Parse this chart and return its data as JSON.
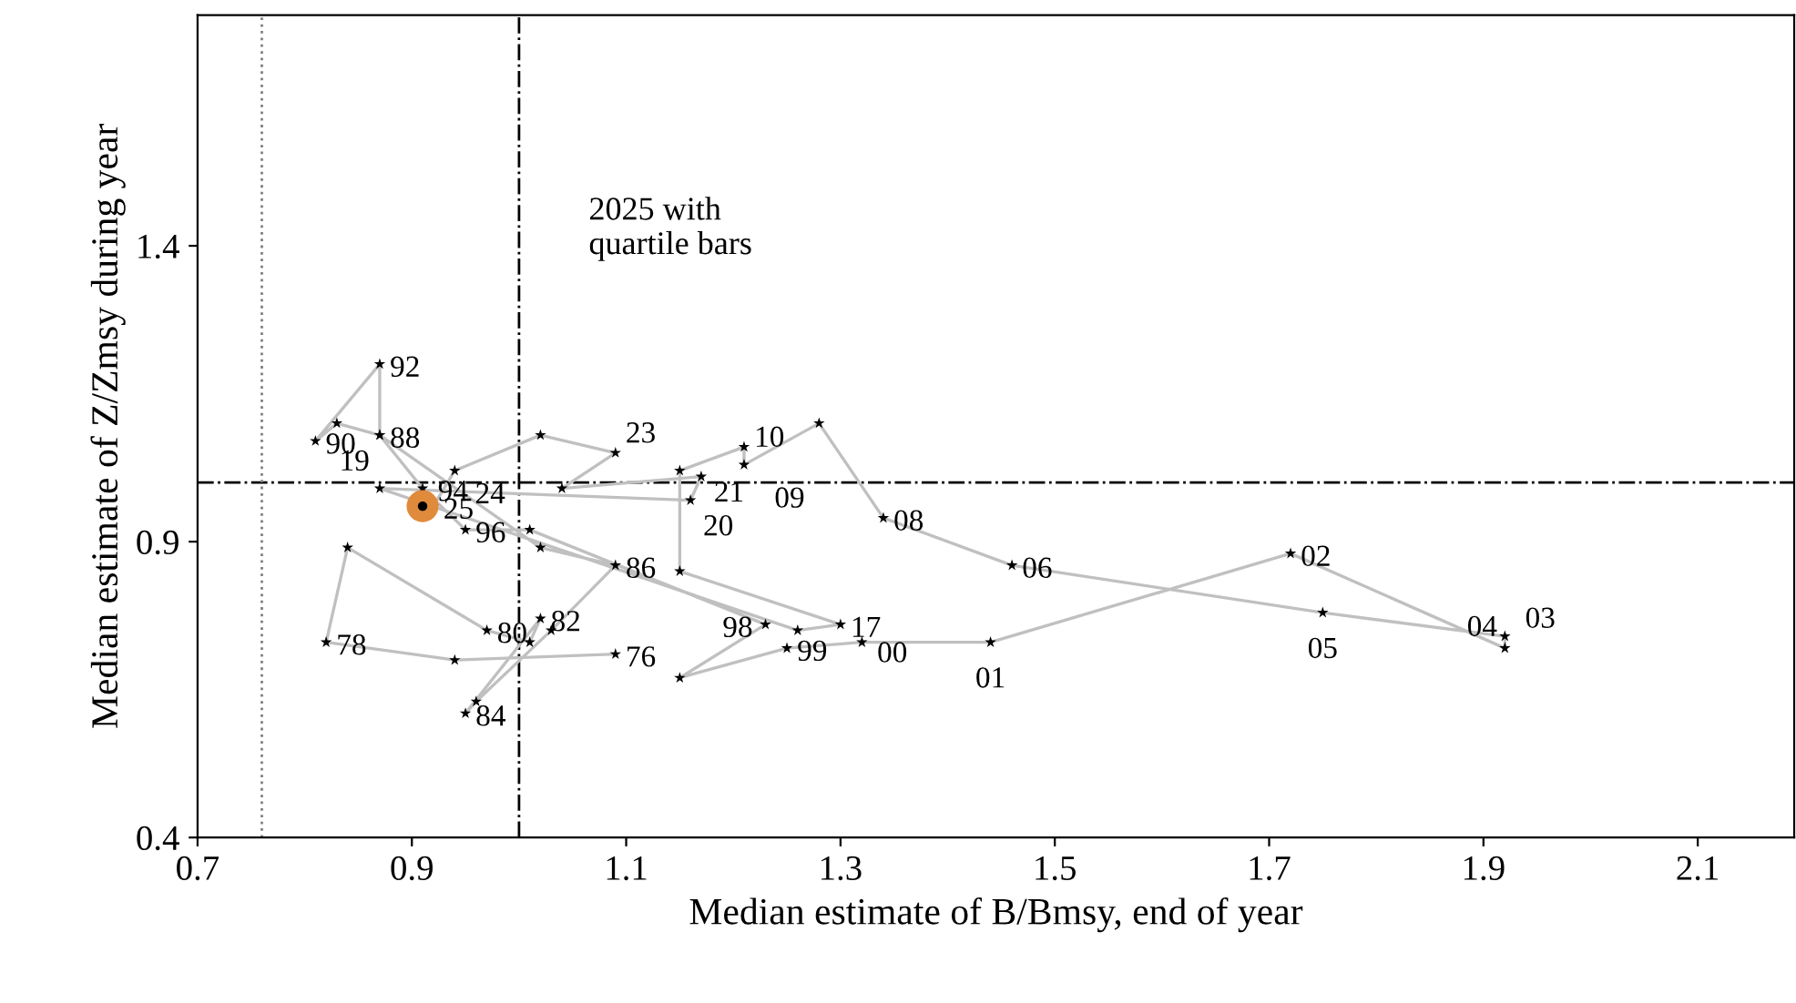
{
  "chart_data": {
    "type": "line",
    "xlabel": "Median estimate of B/Bmsy, end of year",
    "ylabel": "Median estimate of Z/Zmsy during year",
    "xlim": [
      0.7,
      2.19
    ],
    "ylim": [
      0.4,
      1.79
    ],
    "xticks": [
      0.7,
      0.9,
      1.1,
      1.3,
      1.5,
      1.7,
      1.9,
      2.1
    ],
    "yticks": [
      0.4,
      0.9,
      1.4
    ],
    "grid": false,
    "legend": false,
    "line_style": "solid",
    "series": [
      {
        "marker": "star",
        "color": "#c0c0c0",
        "x": [
          1.09,
          0.94,
          0.82,
          0.84,
          0.97,
          1.01,
          1.02,
          0.95,
          0.96,
          1.03,
          1.09,
          1.02,
          0.87,
          0.83,
          0.81,
          0.87,
          0.87,
          0.91,
          0.95,
          1.01,
          1.23,
          1.15,
          1.25,
          1.32,
          1.44,
          1.72,
          1.92,
          1.92,
          1.75,
          1.46,
          1.34,
          1.28,
          1.21,
          1.21,
          1.15,
          1.15,
          1.3,
          1.26,
          0.87,
          1.16,
          1.17,
          1.04,
          1.09,
          1.02,
          0.94,
          0.92
        ],
        "values": [
          0.71,
          0.7,
          0.73,
          0.89,
          0.75,
          0.73,
          0.77,
          0.61,
          0.63,
          0.75,
          0.86,
          0.89,
          1.08,
          1.1,
          1.07,
          1.2,
          1.08,
          0.99,
          0.92,
          0.92,
          0.76,
          0.67,
          0.72,
          0.73,
          0.73,
          0.88,
          0.72,
          0.74,
          0.78,
          0.86,
          0.94,
          1.1,
          1.03,
          1.06,
          1.02,
          0.85,
          0.76,
          0.75,
          0.99,
          0.97,
          1.01,
          0.99,
          1.05,
          1.08,
          1.02,
          0.96
        ]
      },
      {
        "type": "scatter",
        "marker": "circle",
        "color": "#e08a3c",
        "x": [
          0.91
        ],
        "values": [
          0.96
        ]
      }
    ],
    "ref_lines": [
      {
        "axis": "x",
        "value": 1.0,
        "line_style": "dashdot",
        "color": "#000000"
      },
      {
        "axis": "y",
        "value": 1.0,
        "line_style": "dashdot",
        "color": "#000000"
      },
      {
        "axis": "x",
        "value": 0.76,
        "line_style": "dotted",
        "color": "#808080"
      }
    ],
    "annotations": [
      "2025 with\nquartile bars",
      {
        "text": "76",
        "x": 1.09,
        "y": 0.71
      },
      {
        "text": "78",
        "x": 0.82,
        "y": 0.73
      },
      {
        "text": "80",
        "x": 0.97,
        "y": 0.75
      },
      {
        "text": "82",
        "x": 1.02,
        "y": 0.77
      },
      {
        "text": "84",
        "x": 0.95,
        "y": 0.61
      },
      {
        "text": "86",
        "x": 1.09,
        "y": 0.86
      },
      {
        "text": "88",
        "x": 0.87,
        "y": 1.08
      },
      {
        "text": "90",
        "x": 0.81,
        "y": 1.07
      },
      {
        "text": "92",
        "x": 0.87,
        "y": 1.2
      },
      {
        "text": "94",
        "x": 0.91,
        "y": 0.99
      },
      {
        "text": "96",
        "x": 0.95,
        "y": 0.92
      },
      {
        "text": "98",
        "x": 1.23,
        "y": 0.76
      },
      {
        "text": "99",
        "x": 1.25,
        "y": 0.72
      },
      {
        "text": "00",
        "x": 1.32,
        "y": 0.73
      },
      {
        "text": "01",
        "x": 1.44,
        "y": 0.73
      },
      {
        "text": "02",
        "x": 1.72,
        "y": 0.88
      },
      {
        "text": "03",
        "x": 1.92,
        "y": 0.72
      },
      {
        "text": "04",
        "x": 1.92,
        "y": 0.74
      },
      {
        "text": "05",
        "x": 1.75,
        "y": 0.78
      },
      {
        "text": "06",
        "x": 1.46,
        "y": 0.86
      },
      {
        "text": "08",
        "x": 1.34,
        "y": 0.94
      },
      {
        "text": "09",
        "x": 1.21,
        "y": 1.03
      },
      {
        "text": "10",
        "x": 1.21,
        "y": 1.06
      },
      {
        "text": "17",
        "x": 1.3,
        "y": 0.76
      },
      {
        "text": "19",
        "x": 0.87,
        "y": 0.99
      },
      {
        "text": "20",
        "x": 1.16,
        "y": 0.97
      },
      {
        "text": "21",
        "x": 1.17,
        "y": 1.01
      },
      {
        "text": "23",
        "x": 1.09,
        "y": 1.05
      },
      {
        "text": "24",
        "x": 0.94,
        "y": 1.02
      },
      {
        "text": "25",
        "x": 0.92,
        "y": 0.96
      }
    ]
  }
}
